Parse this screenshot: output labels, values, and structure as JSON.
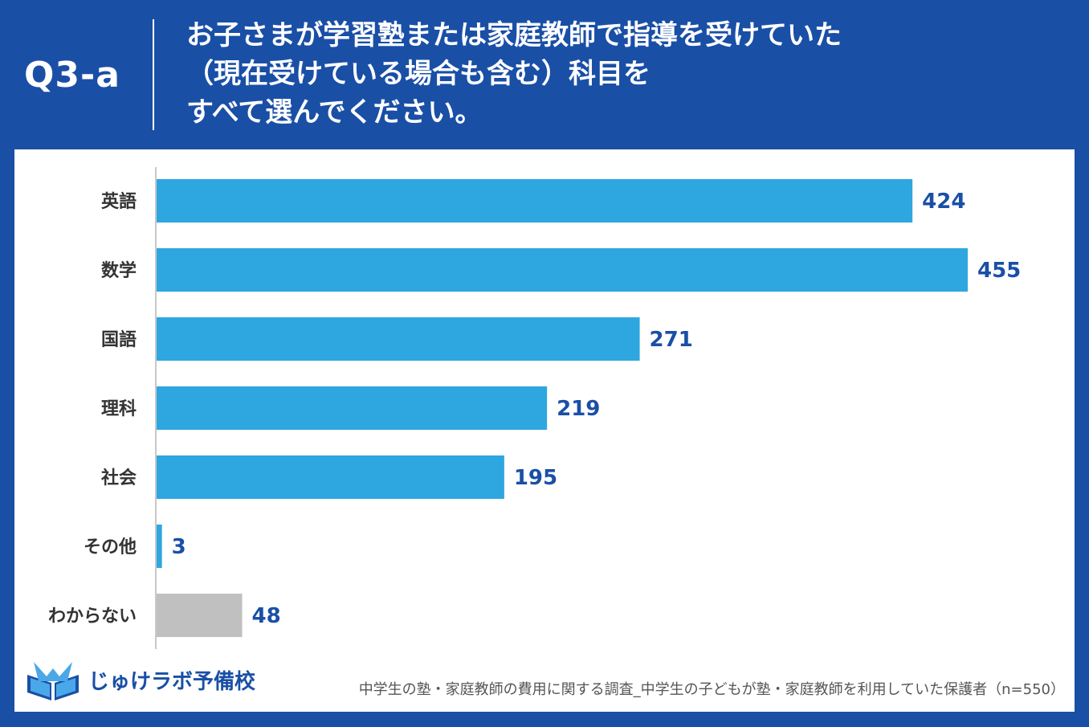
{
  "header": {
    "question_label": "Q3-a",
    "title_lines": [
      "お子さまが学習塾または家庭教師で指導を受けていた",
      "（現在受けている場合も含む）科目を",
      "すべて選んでください。"
    ]
  },
  "chart_data": {
    "type": "bar",
    "orientation": "horizontal",
    "title": "",
    "xlabel": "",
    "ylabel": "",
    "categories": [
      "英語",
      "数学",
      "国語",
      "理科",
      "社会",
      "その他",
      "わからない"
    ],
    "values": [
      424,
      455,
      271,
      219,
      195,
      3,
      48
    ],
    "value_labels": [
      "424",
      "455",
      "271",
      "219",
      "195",
      "3",
      "48"
    ],
    "xlim": [
      0,
      455
    ],
    "grid": false,
    "legend": "none",
    "colors": [
      "#2ea6e0",
      "#2ea6e0",
      "#2ea6e0",
      "#2ea6e0",
      "#2ea6e0",
      "#2ea6e0",
      "#c0c0c0"
    ],
    "label_color": "#1a4fa6"
  },
  "footer": {
    "brand": "じゅけラボ予備校",
    "logo_icon": "book-logo-icon",
    "source": "中学生の塾・家庭教師の費用に関する調査_中学生の子どもが塾・家庭教師を利用していた保護者（n=550）"
  },
  "colors": {
    "background": "#1a4fa6",
    "panel": "#ffffff",
    "bar": "#2ea6e0",
    "bar_unknown": "#c0c0c0",
    "text_label": "#333333",
    "value_label": "#1a4fa6"
  }
}
